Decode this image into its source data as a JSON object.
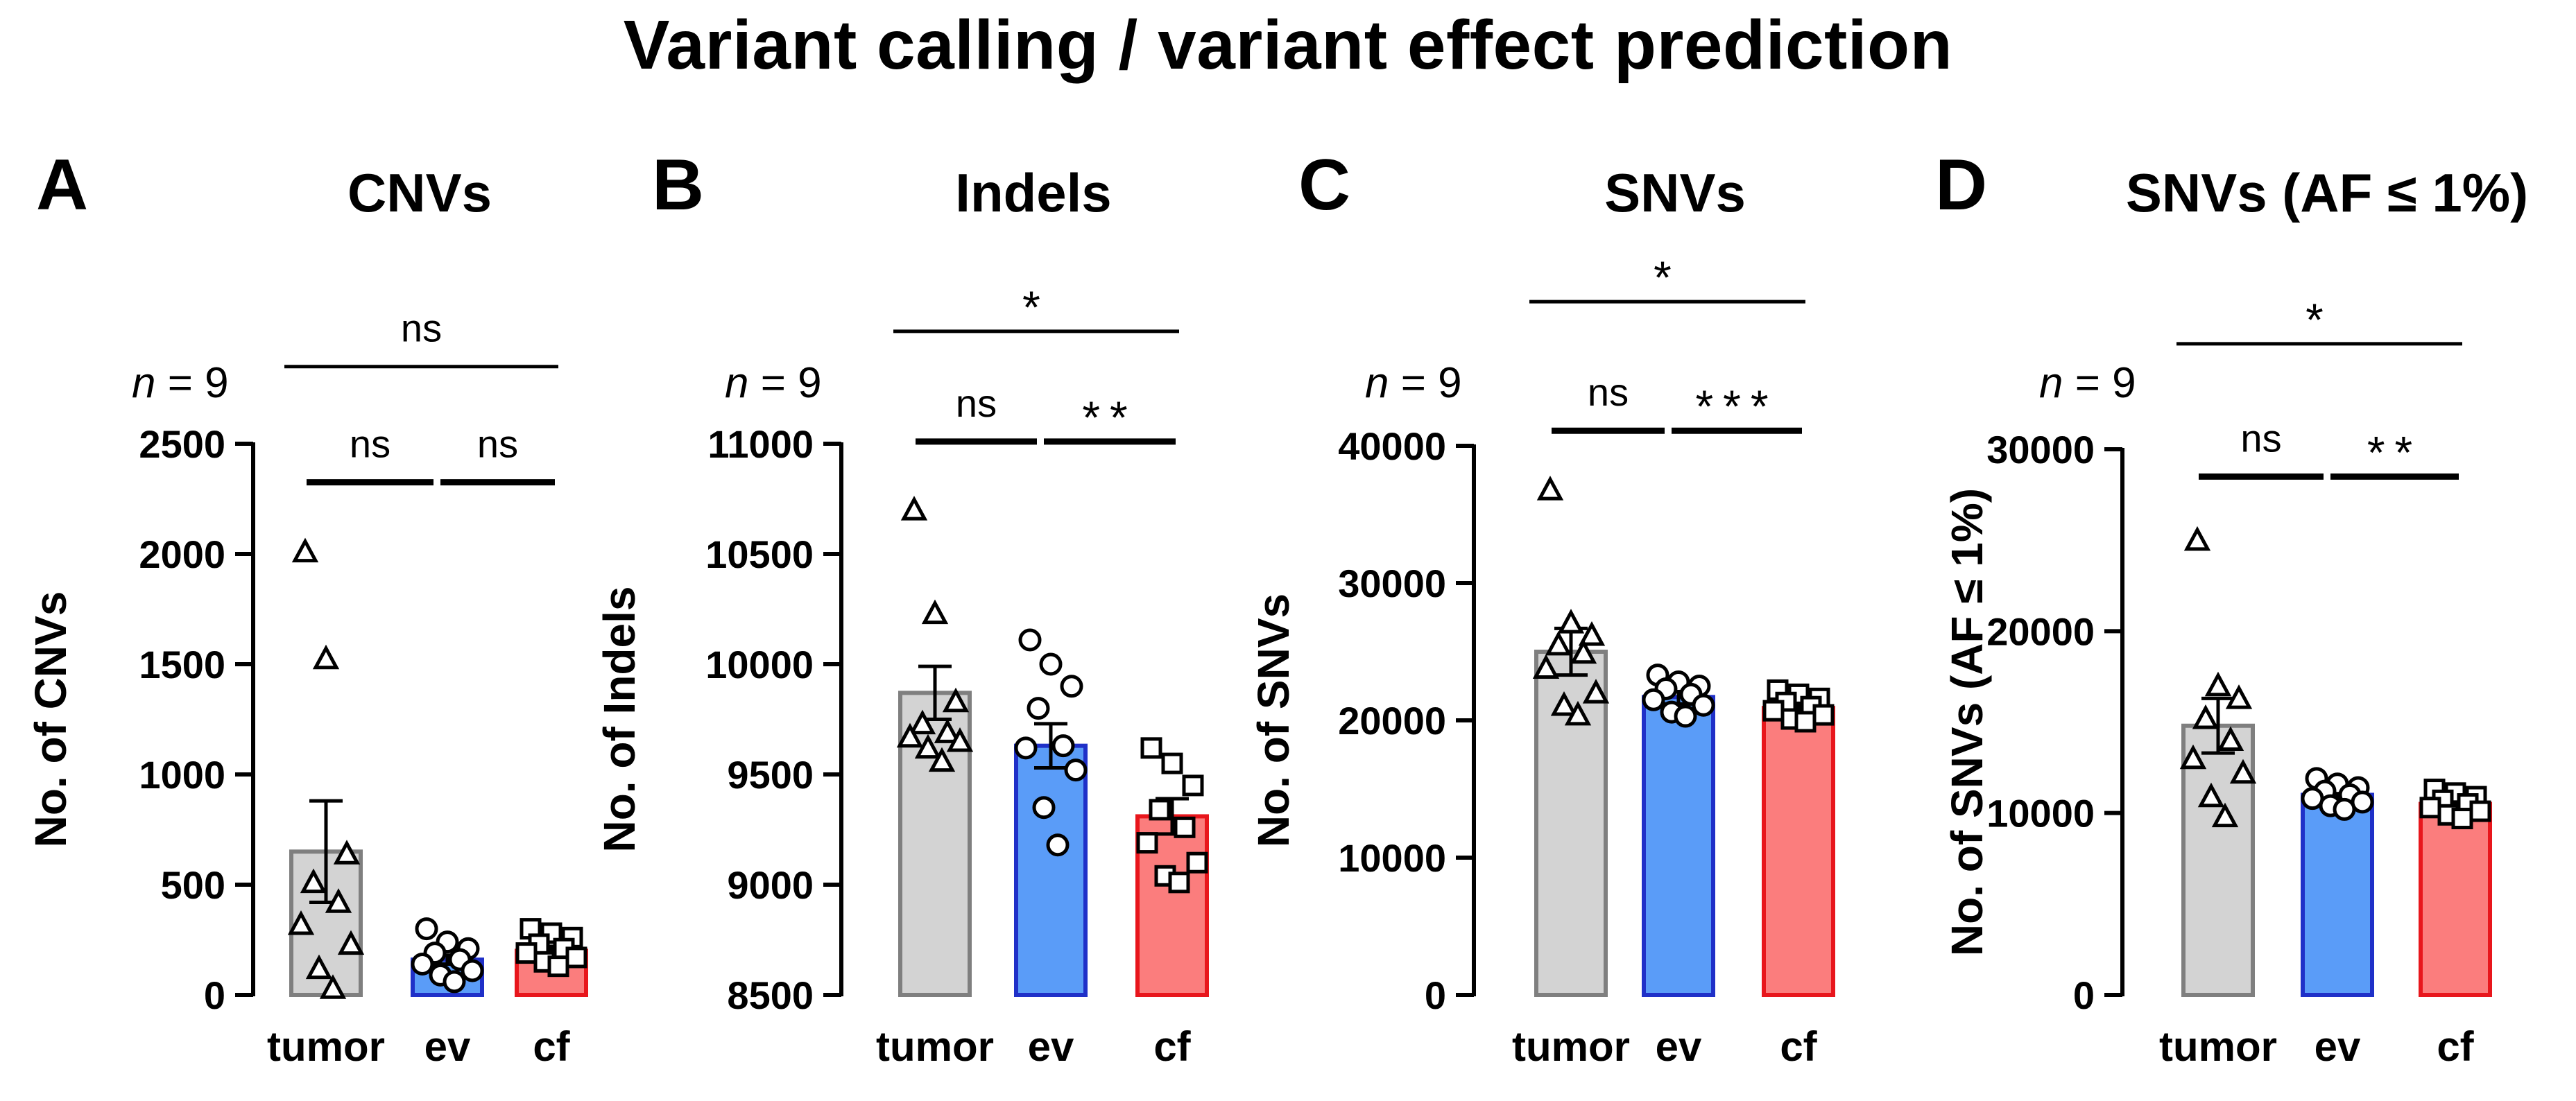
{
  "figure_title": "Variant calling / variant effect prediction",
  "colors": {
    "tumor_fill": "#d3d3d3",
    "tumor_edge": "#7f7f7f",
    "ev_fill": "#5a9cf8",
    "ev_edge": "#1f30c8",
    "cf_fill": "#fb7d7d",
    "cf_edge": "#e8161c"
  },
  "chart_data": [
    {
      "panel": "A",
      "type": "bar",
      "title": "CNVs",
      "n_label_var": "n",
      "n_label_rest": " = 9",
      "ylabel": "No. of CNVs",
      "ylim": [
        0,
        2500
      ],
      "yticks": [
        0,
        500,
        1000,
        1500,
        2000,
        2500
      ],
      "ytick_labels": [
        "0",
        "500",
        "1000",
        "1500",
        "2000",
        "2500"
      ],
      "categories": [
        "tumor",
        "ev",
        "cf"
      ],
      "series": [
        {
          "name": "tumor",
          "marker": "triangle",
          "mean": 650,
          "sem": 230,
          "points": [
            2010,
            1525,
            640,
            510,
            420,
            320,
            230,
            120,
            30
          ]
        },
        {
          "name": "ev",
          "marker": "circle",
          "mean": 160,
          "sem": 20,
          "points": [
            300,
            240,
            210,
            190,
            160,
            140,
            110,
            90,
            60
          ]
        },
        {
          "name": "cf",
          "marker": "square",
          "mean": 200,
          "sem": 20,
          "points": [
            300,
            280,
            260,
            230,
            210,
            190,
            170,
            150,
            130
          ]
        }
      ],
      "comparisons": [
        {
          "pair": [
            0,
            2
          ],
          "label": "ns",
          "y": 2850,
          "level": "top"
        },
        {
          "pair": [
            0,
            1
          ],
          "label": "ns",
          "y": 2325,
          "level": "low"
        },
        {
          "pair": [
            1,
            2
          ],
          "label": "ns",
          "y": 2325,
          "level": "low"
        }
      ]
    },
    {
      "panel": "B",
      "type": "bar",
      "title": "Indels",
      "n_label_var": "n",
      "n_label_rest": " = 9",
      "ylabel": "No. of Indels",
      "ylim": [
        8500,
        11000
      ],
      "yticks": [
        8500,
        9000,
        9500,
        10000,
        10500,
        11000
      ],
      "ytick_labels": [
        "8500",
        "9000",
        "9500",
        "10000",
        "10500",
        "11000"
      ],
      "categories": [
        "tumor",
        "ev",
        "cf"
      ],
      "series": [
        {
          "name": "tumor",
          "marker": "triangle",
          "mean": 9870,
          "sem": 120,
          "points": [
            10700,
            10230,
            9830,
            9730,
            9690,
            9670,
            9650,
            9620,
            9560
          ]
        },
        {
          "name": "ev",
          "marker": "circle",
          "mean": 9630,
          "sem": 100,
          "points": [
            10110,
            10000,
            9900,
            9800,
            9630,
            9620,
            9520,
            9350,
            9180
          ]
        },
        {
          "name": "cf",
          "marker": "square",
          "mean": 9310,
          "sem": 80,
          "points": [
            9620,
            9550,
            9450,
            9340,
            9260,
            9190,
            9100,
            9040,
            9010
          ]
        }
      ],
      "comparisons": [
        {
          "pair": [
            0,
            2
          ],
          "label": "*",
          "y": 11510,
          "level": "top"
        },
        {
          "pair": [
            0,
            1
          ],
          "label": "ns",
          "y": 11010,
          "level": "low"
        },
        {
          "pair": [
            1,
            2
          ],
          "label": "**",
          "y": 11010,
          "level": "low"
        }
      ]
    },
    {
      "panel": "C",
      "type": "bar",
      "title": "SNVs",
      "n_label_var": "n",
      "n_label_rest": " = 9",
      "ylabel": "No. of SNVs",
      "ylim": [
        0,
        40000
      ],
      "yticks": [
        0,
        10000,
        20000,
        30000,
        40000
      ],
      "ytick_labels": [
        "0",
        "10000",
        "20000",
        "30000",
        "40000"
      ],
      "categories": [
        "tumor",
        "ev",
        "cf"
      ],
      "series": [
        {
          "name": "tumor",
          "marker": "triangle",
          "mean": 25000,
          "sem": 1700,
          "points": [
            36800,
            27100,
            26200,
            25500,
            24900,
            23800,
            22000,
            21100,
            20400
          ]
        },
        {
          "name": "ev",
          "marker": "circle",
          "mean": 21700,
          "sem": 500,
          "points": [
            23300,
            22800,
            22500,
            22300,
            21900,
            21500,
            21100,
            20600,
            20300
          ]
        },
        {
          "name": "cf",
          "marker": "square",
          "mean": 20900,
          "sem": 300,
          "points": [
            22200,
            21900,
            21600,
            21300,
            21000,
            20700,
            20400,
            20100,
            19900
          ]
        }
      ],
      "comparisons": [
        {
          "pair": [
            0,
            2
          ],
          "label": "*",
          "y": 50500,
          "level": "top"
        },
        {
          "pair": [
            0,
            1
          ],
          "label": "ns",
          "y": 41100,
          "level": "low"
        },
        {
          "pair": [
            1,
            2
          ],
          "label": "***",
          "y": 41100,
          "level": "low"
        }
      ]
    },
    {
      "panel": "D",
      "type": "bar",
      "title": "SNVs (AF ≤ 1%)",
      "n_label_var": "n",
      "n_label_rest": " = 9",
      "ylabel": "No. of SNVs (AF ≤ 1%)",
      "ylim": [
        0,
        30000
      ],
      "yticks": [
        0,
        10000,
        20000,
        30000
      ],
      "ytick_labels": [
        "0",
        "10000",
        "20000",
        "30000"
      ],
      "categories": [
        "tumor",
        "ev",
        "cf"
      ],
      "series": [
        {
          "name": "tumor",
          "marker": "triangle",
          "mean": 14800,
          "sem": 1500,
          "points": [
            25000,
            17000,
            16300,
            15200,
            14000,
            13000,
            12200,
            10900,
            9800
          ]
        },
        {
          "name": "ev",
          "marker": "circle",
          "mean": 11000,
          "sem": 300,
          "points": [
            11900,
            11600,
            11400,
            11200,
            11000,
            10800,
            10600,
            10400,
            10200
          ]
        },
        {
          "name": "cf",
          "marker": "square",
          "mean": 10500,
          "sem": 250,
          "points": [
            11300,
            11100,
            10900,
            10700,
            10500,
            10300,
            10100,
            9900,
            9700
          ]
        }
      ],
      "comparisons": [
        {
          "pair": [
            0,
            2
          ],
          "label": "*",
          "y": 35800,
          "level": "top"
        },
        {
          "pair": [
            0,
            1
          ],
          "label": "ns",
          "y": 28500,
          "level": "low"
        },
        {
          "pair": [
            1,
            2
          ],
          "label": "**",
          "y": 28500,
          "level": "low"
        }
      ]
    }
  ]
}
